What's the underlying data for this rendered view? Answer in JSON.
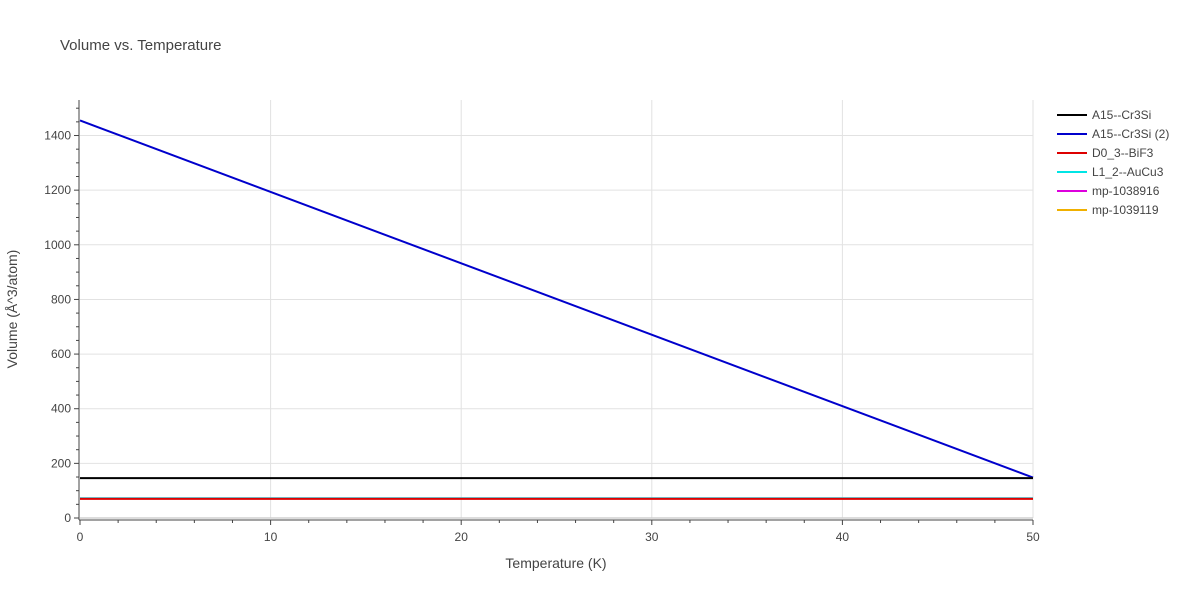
{
  "chart_data": {
    "type": "line",
    "title": "Volume vs. Temperature",
    "xlabel": "Temperature (K)",
    "ylabel": "Volume (Å^3/atom)",
    "xlim": [
      0,
      50
    ],
    "ylim": [
      0,
      1530
    ],
    "xticks": [
      0,
      10,
      20,
      30,
      40,
      50
    ],
    "yticks": [
      0,
      200,
      400,
      600,
      800,
      1000,
      1200,
      1400
    ],
    "grid": true,
    "legend_position": "top-right",
    "series": [
      {
        "name": "A15--Cr3Si",
        "color": "#000000",
        "x": [
          0,
          50
        ],
        "y": [
          146,
          146
        ]
      },
      {
        "name": "A15--Cr3Si (2)",
        "color": "#0000cc",
        "x": [
          0,
          50
        ],
        "y": [
          1455,
          148
        ]
      },
      {
        "name": "D0_3--BiF3",
        "color": "#dd0000",
        "x": [
          0,
          50
        ],
        "y": [
          70,
          70
        ]
      },
      {
        "name": "L1_2--AuCu3",
        "color": "#00e5e5",
        "x": [
          0,
          50
        ],
        "y": [
          72,
          72
        ]
      },
      {
        "name": "mp-1038916",
        "color": "#dd00dd",
        "x": [
          0,
          50
        ],
        "y": [
          72,
          72
        ]
      },
      {
        "name": "mp-1039119",
        "color": "#f0b000",
        "x": [
          0,
          50
        ],
        "y": [
          72,
          72
        ]
      }
    ]
  }
}
